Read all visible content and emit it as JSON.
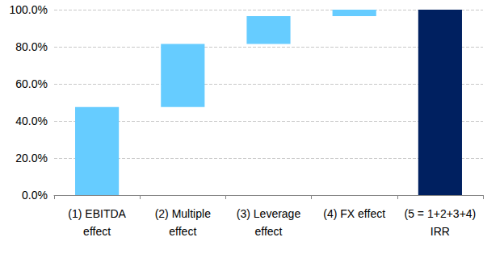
{
  "chart_data": {
    "type": "waterfall",
    "categories": [
      "(1) EBITDA\neffect",
      "(2) Multiple\neffect",
      "(3) Leverage\neffect",
      "(4) FX effect",
      "(5 = 1+2+3+4)\nIRR"
    ],
    "values": [
      47.5,
      34,
      15,
      3.5,
      100
    ],
    "colors": [
      "#66ccff",
      "#66ccff",
      "#66ccff",
      "#66ccff",
      "#002060"
    ],
    "ylim": [
      0,
      100
    ],
    "yticks": [
      {
        "value": 0,
        "label": "0.0%"
      },
      {
        "value": 20,
        "label": "20.0%"
      },
      {
        "value": 40,
        "label": "40.0%"
      },
      {
        "value": 60,
        "label": "60.0%"
      },
      {
        "value": 80,
        "label": "80.0%"
      },
      {
        "value": 100,
        "label": "100.0%"
      }
    ],
    "grid": true
  }
}
